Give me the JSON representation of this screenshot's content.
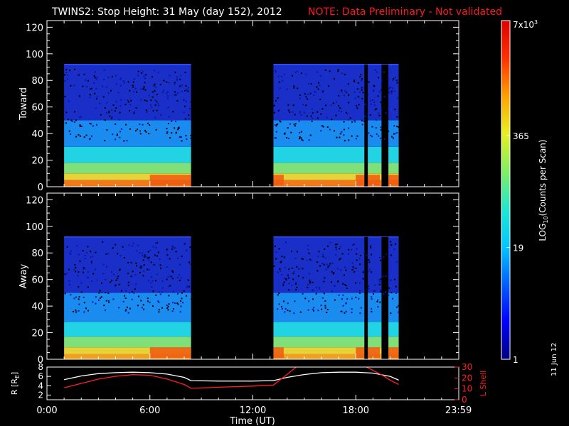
{
  "title": {
    "main": "TWINS2: Stop Height: 31 May (day 152), 2012",
    "note": "NOTE: Data Preliminary - Not validated",
    "note_color": "#ff1a1a"
  },
  "date_stamp": "11 Jun 12",
  "chart_data": [
    {
      "type": "heatmap",
      "panel": "toward",
      "ylabel": "Toward",
      "ylim": [
        0,
        125
      ],
      "y_ticks": [
        0,
        20,
        40,
        60,
        80,
        100,
        120
      ],
      "xlim_hours": [
        0,
        24
      ],
      "data_ceiling": 92,
      "active_intervals_hours": [
        [
          1.0,
          8.4
        ],
        [
          13.2,
          20.5
        ]
      ],
      "gap_intervals_hours": [
        [
          18.5,
          18.7
        ],
        [
          19.5,
          19.9
        ]
      ],
      "intensity_bands": [
        {
          "y_max": 5,
          "color": "#f07a1a"
        },
        {
          "y_max": 10,
          "color": "#e8d23a"
        },
        {
          "y_max": 18,
          "color": "#7fe07a"
        },
        {
          "y_max": 30,
          "color": "#22d3e3"
        },
        {
          "y_max": 50,
          "color": "#1a8cf0"
        },
        {
          "y_max": 92,
          "color": "#1a2fc8"
        }
      ],
      "hotspots_hours": [
        [
          6.0,
          8.4
        ],
        [
          13.2,
          13.8
        ],
        [
          18.0,
          19.4
        ],
        [
          19.9,
          20.5
        ]
      ]
    },
    {
      "type": "heatmap",
      "panel": "away",
      "ylabel": "Away",
      "ylim": [
        0,
        125
      ],
      "y_ticks": [
        0,
        20,
        40,
        60,
        80,
        100,
        120
      ],
      "xlim_hours": [
        0,
        24
      ],
      "data_ceiling": 92,
      "active_intervals_hours": [
        [
          1.0,
          8.4
        ],
        [
          13.2,
          20.5
        ]
      ],
      "gap_intervals_hours": [
        [
          18.5,
          18.7
        ],
        [
          19.5,
          19.9
        ]
      ],
      "intensity_bands": [
        {
          "y_max": 4,
          "color": "#f0a020"
        },
        {
          "y_max": 9,
          "color": "#e8d23a"
        },
        {
          "y_max": 17,
          "color": "#7fe07a"
        },
        {
          "y_max": 28,
          "color": "#22d3e3"
        },
        {
          "y_max": 50,
          "color": "#1a8cf0"
        },
        {
          "y_max": 92,
          "color": "#1a2fc8"
        }
      ],
      "hotspots_hours": [
        [
          6.0,
          8.4
        ],
        [
          13.2,
          13.8
        ],
        [
          18.0,
          19.4
        ],
        [
          19.9,
          20.5
        ]
      ]
    },
    {
      "type": "line",
      "panel": "ephemeris",
      "ylabel_left": "R [R",
      "ylabel_left_sub": "E",
      "ylabel_left_end": "]",
      "ylabel_right": "L Shell",
      "left_ylim": [
        1,
        8
      ],
      "left_ticks": [
        2,
        4,
        6,
        8
      ],
      "right_ylim": [
        0,
        30
      ],
      "right_ticks": [
        0,
        10,
        20,
        30
      ],
      "x_ticks_hours": [
        0,
        6,
        12,
        18,
        23.983
      ],
      "x_tick_labels": [
        "0:00",
        "6:00",
        "12:00",
        "18:00",
        "23:59"
      ],
      "xlabel": "Time (UT)",
      "series": [
        {
          "role": "radius",
          "color": "#ffffff",
          "axis": "left",
          "x": [
            1.0,
            2.0,
            3.0,
            4.0,
            5.0,
            6.0,
            7.0,
            8.0,
            8.4,
            10.0,
            12.0,
            13.2,
            14.0,
            15.0,
            16.0,
            17.0,
            18.0,
            19.0,
            20.0,
            20.5
          ],
          "y": [
            5.3,
            6.1,
            6.6,
            6.8,
            6.9,
            6.8,
            6.5,
            5.8,
            5.1,
            5.0,
            5.0,
            5.1,
            5.8,
            6.4,
            6.8,
            6.9,
            6.9,
            6.7,
            6.0,
            5.2
          ]
        },
        {
          "role": "lshell",
          "color": "#ff2020",
          "axis": "right",
          "x": [
            1.0,
            2.0,
            3.0,
            4.0,
            5.0,
            6.0,
            7.0,
            8.0,
            8.4,
            10.0,
            12.0,
            13.2,
            13.9,
            14.6,
            18.5,
            19.0,
            19.6,
            20.0,
            20.5
          ],
          "y": [
            11.0,
            15.0,
            19.0,
            21.5,
            23.0,
            22.5,
            19.0,
            14.0,
            10.5,
            11.5,
            12.5,
            13.5,
            22.0,
            31.0,
            31.0,
            27.0,
            22.0,
            18.0,
            14.0
          ]
        }
      ]
    }
  ],
  "x_axis": {
    "ticks_hours": [
      0,
      6,
      12,
      18,
      23.983
    ],
    "labels": [
      "0:00",
      "6:00",
      "12:00",
      "18:00",
      "23:59"
    ],
    "title": "Time (UT)"
  },
  "colorbar": {
    "title": "LOG",
    "title_sub": "10",
    "title_end": "(Counts per Scan)",
    "ticks": [
      {
        "label": "1",
        "level": 0.0
      },
      {
        "label": "19",
        "level": 0.33
      },
      {
        "label": "365",
        "level": 0.66
      },
      {
        "label": "7x10",
        "sup": "3",
        "level": 1.0
      }
    ],
    "gradient": [
      "#000080",
      "#0000ff",
      "#0060ff",
      "#00c8ff",
      "#20e8d0",
      "#80f060",
      "#e8f020",
      "#ffa000",
      "#ff3000",
      "#e00000"
    ]
  }
}
